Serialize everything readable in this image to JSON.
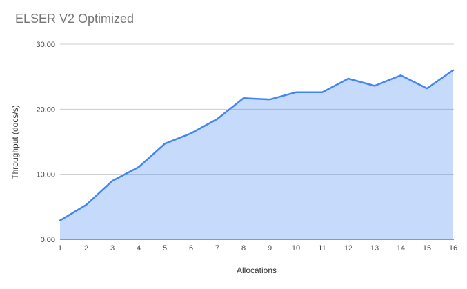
{
  "chart_data": {
    "type": "area",
    "title": "ELSER V2 Optimized",
    "xlabel": "Allocations",
    "ylabel": "Throughput (docs/s)",
    "x": [
      1,
      2,
      3,
      4,
      5,
      6,
      7,
      8,
      9,
      10,
      11,
      12,
      13,
      14,
      15,
      16
    ],
    "values": [
      2.9,
      5.3,
      9.0,
      11.1,
      14.7,
      16.3,
      18.5,
      21.7,
      21.5,
      22.6,
      22.6,
      24.7,
      23.6,
      25.2,
      23.2,
      26.0
    ],
    "ylim": [
      0,
      30
    ],
    "ytick_values": [
      0,
      10,
      20,
      30
    ],
    "ytick_labels": [
      "0.00",
      "10.00",
      "20.00",
      "30.00"
    ],
    "grid": true,
    "legend": "none",
    "colors": {
      "line": "#4285f4",
      "fill": "#4285f4",
      "fill_opacity": 0.3,
      "grid": "#cccccc",
      "axis": "#333333",
      "tick_label": "#424242",
      "title": "#757575",
      "axis_title": "#333333",
      "background": "#ffffff"
    }
  }
}
